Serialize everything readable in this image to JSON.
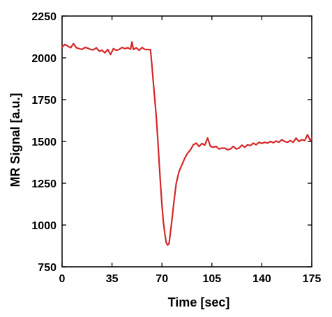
{
  "chart_data": {
    "type": "line",
    "title": "",
    "xlabel": "Time [sec]",
    "ylabel": "MR Signal [a.u.]",
    "xlim": [
      0,
      175
    ],
    "ylim": [
      750,
      2250
    ],
    "x_ticks": [
      0,
      35,
      70,
      105,
      140,
      175
    ],
    "y_ticks": [
      750,
      1000,
      1250,
      1500,
      1750,
      2000,
      2250
    ],
    "x_tick_labels": [
      "0",
      "35",
      "70",
      "105",
      "140",
      "175"
    ],
    "y_tick_labels": [
      "750",
      "1000",
      "1250",
      "1500",
      "1750",
      "2000",
      "2250"
    ],
    "grid": false,
    "legend": "none",
    "series_color": "#d62728",
    "series": [
      {
        "x": [
          0,
          2,
          4,
          6,
          8,
          10,
          12,
          14,
          16,
          18,
          20,
          22,
          24,
          26,
          28,
          30,
          32,
          34,
          36,
          38,
          40,
          42,
          44,
          46,
          48,
          49,
          50,
          52,
          54,
          56,
          58,
          60,
          62,
          63,
          64,
          65,
          66,
          67,
          68,
          69,
          70,
          71,
          72,
          73,
          74,
          75,
          76,
          77,
          78,
          79,
          80,
          82,
          84,
          86,
          88,
          90,
          92,
          94,
          96,
          98,
          100,
          102,
          104,
          106,
          108,
          110,
          112,
          114,
          116,
          118,
          120,
          122,
          124,
          126,
          128,
          130,
          132,
          134,
          136,
          138,
          140,
          142,
          144,
          146,
          148,
          150,
          152,
          154,
          156,
          158,
          160,
          162,
          164,
          166,
          168,
          170,
          172,
          174,
          175
        ],
        "y": [
          2065,
          2080,
          2070,
          2060,
          2085,
          2060,
          2055,
          2050,
          2062,
          2058,
          2050,
          2048,
          2060,
          2040,
          2045,
          2030,
          2050,
          2020,
          2055,
          2045,
          2050,
          2062,
          2055,
          2060,
          2052,
          2095,
          2050,
          2060,
          2045,
          2062,
          2050,
          2050,
          2048,
          1950,
          1850,
          1750,
          1650,
          1520,
          1380,
          1240,
          1120,
          1020,
          950,
          895,
          880,
          890,
          960,
          1030,
          1110,
          1180,
          1250,
          1320,
          1360,
          1400,
          1430,
          1450,
          1480,
          1490,
          1470,
          1488,
          1478,
          1520,
          1470,
          1465,
          1470,
          1455,
          1460,
          1460,
          1450,
          1455,
          1470,
          1455,
          1460,
          1478,
          1465,
          1480,
          1475,
          1490,
          1480,
          1495,
          1488,
          1495,
          1490,
          1500,
          1492,
          1502,
          1495,
          1510,
          1500,
          1495,
          1505,
          1495,
          1520,
          1500,
          1510,
          1505,
          1540,
          1505,
          1520
        ]
      }
    ]
  }
}
